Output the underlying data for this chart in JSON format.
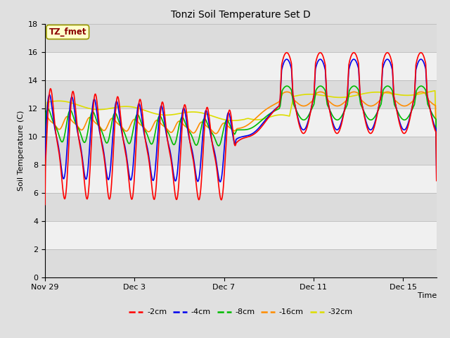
{
  "title": "Tonzi Soil Temperature Set D",
  "xlabel": "Time",
  "ylabel": "Soil Temperature (C)",
  "ylim": [
    0,
    18
  ],
  "yticks": [
    0,
    2,
    4,
    6,
    8,
    10,
    12,
    14,
    16,
    18
  ],
  "annotation_text": "TZ_fmet",
  "annotation_color": "#8B0000",
  "annotation_bg": "#FFFFCC",
  "annotation_border": "#999900",
  "bg_color": "#E0E0E0",
  "plot_bg_light": "#F0F0F0",
  "plot_bg_dark": "#DCDCDC",
  "line_colors": {
    "-2cm": "#FF0000",
    "-4cm": "#0000EE",
    "-8cm": "#00BB00",
    "-16cm": "#FF8C00",
    "-32cm": "#DDDD00"
  },
  "x_tick_labels": [
    "Nov 29",
    "Dec 3",
    "Dec 7",
    "Dec 11",
    "Dec 15"
  ],
  "x_tick_positions": [
    0,
    4,
    8,
    12,
    16
  ],
  "xlim": [
    0,
    17.5
  ],
  "figsize": [
    6.4,
    4.8
  ],
  "dpi": 100
}
